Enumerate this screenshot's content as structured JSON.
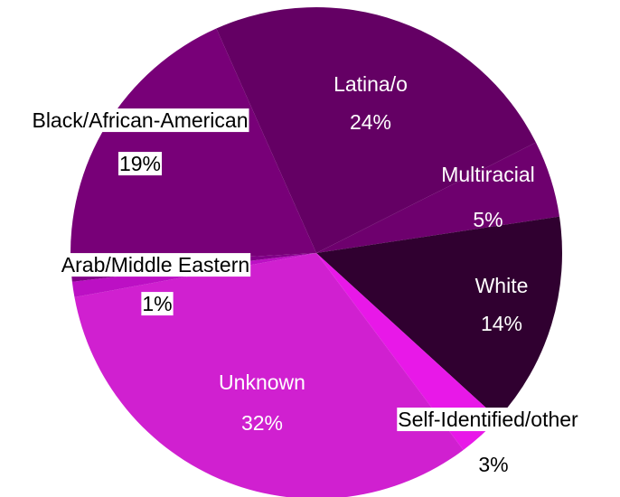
{
  "chart_data": {
    "type": "pie",
    "categories": [
      "Latina/o",
      "Multiracial",
      "White",
      "Self-Identified/other",
      "Unknown",
      "Arab/Middle Eastern",
      null,
      "Black/African-American"
    ],
    "values": [
      24,
      5,
      14,
      3,
      32,
      1,
      1,
      19
    ],
    "value_labels": [
      "24%",
      "5%",
      "14%",
      "3%",
      "32%",
      "1%",
      null,
      "19%"
    ],
    "colors": [
      "#640064",
      "#6e006e",
      "#300030",
      "#e818e8",
      "#d020d0",
      "#bc10c4",
      "#820088",
      "#780078"
    ]
  }
}
